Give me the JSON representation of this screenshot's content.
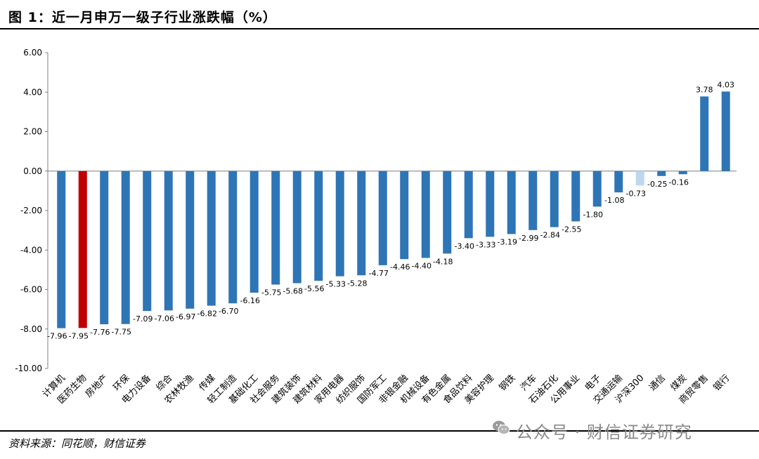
{
  "header": {
    "title": "图 1：近一月申万一级子行业涨跌幅（%）"
  },
  "footer": {
    "source": "资料来源：同花顺，财信证券",
    "watermark": "公众号 · 财信证券研究"
  },
  "colors": {
    "default": "#2E75B6",
    "highlight": "#C00000",
    "index": "#BDD7EE"
  },
  "chart_data": {
    "type": "bar",
    "title": "",
    "xlabel": "",
    "ylabel": "",
    "ylim": [
      -10,
      6
    ],
    "yticks": [
      "6.00",
      "4.00",
      "2.00",
      "0.00",
      "-2.00",
      "-4.00",
      "-6.00",
      "-8.00",
      "-10.00"
    ],
    "grid": false,
    "categories": [
      "计算机",
      "医药生物",
      "房地产",
      "环保",
      "电力设备",
      "综合",
      "农林牧渔",
      "传媒",
      "轻工制造",
      "基础化工",
      "社会服务",
      "建筑装饰",
      "建筑材料",
      "家用电器",
      "纺织服饰",
      "国防军工",
      "非银金融",
      "机械设备",
      "有色金属",
      "食品饮料",
      "美容护理",
      "钢铁",
      "汽车",
      "石油石化",
      "公用事业",
      "电子",
      "交通运输",
      "沪深300",
      "通信",
      "煤炭",
      "商贸零售",
      "银行"
    ],
    "values": [
      -7.96,
      -7.95,
      -7.76,
      -7.75,
      -7.09,
      -7.06,
      -6.97,
      -6.82,
      -6.7,
      -6.16,
      -5.75,
      -5.68,
      -5.56,
      -5.33,
      -5.28,
      -4.77,
      -4.46,
      -4.4,
      -4.18,
      -3.4,
      -3.33,
      -3.19,
      -2.99,
      -2.84,
      -2.55,
      -1.8,
      -1.08,
      -0.73,
      -0.25,
      -0.16,
      3.78,
      4.03
    ],
    "labels": [
      "-7.96",
      "-7.95",
      "-7.76",
      "-7.75",
      "-7.09",
      "-7.06",
      "-6.97",
      "-6.82",
      "-6.70",
      "-6.16",
      "-5.75",
      "-5.68",
      "-5.56",
      "-5.33",
      "-5.28",
      "-4.77",
      "-4.46",
      "-4.40",
      "-4.18",
      "-3.40",
      "-3.33",
      "-3.19",
      "-2.99",
      "-2.84",
      "-2.55",
      "-1.80",
      "-1.08",
      "-0.73",
      "-0.25",
      "-0.16",
      "3.78",
      "4.03"
    ],
    "bar_colors": [
      "default",
      "highlight",
      "default",
      "default",
      "default",
      "default",
      "default",
      "default",
      "default",
      "default",
      "default",
      "default",
      "default",
      "default",
      "default",
      "default",
      "default",
      "default",
      "default",
      "default",
      "default",
      "default",
      "default",
      "default",
      "default",
      "default",
      "default",
      "index",
      "default",
      "default",
      "default",
      "default"
    ]
  }
}
